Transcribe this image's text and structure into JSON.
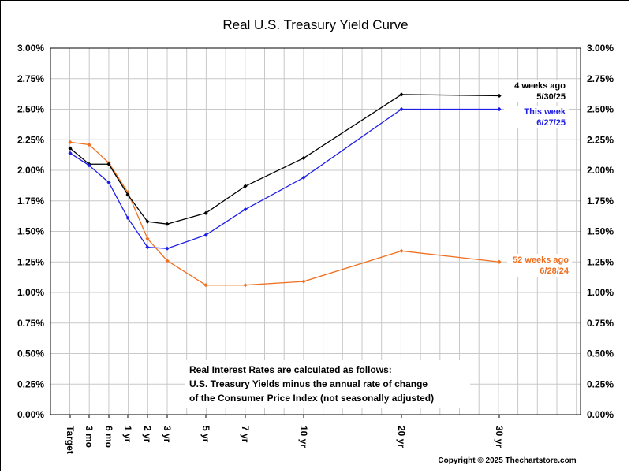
{
  "chart_data": {
    "type": "line",
    "title": "Real U.S. Treasury Yield Curve",
    "categories": [
      "Target",
      "3 mo",
      "6 mo",
      "1 yr",
      "2 yr",
      "3 yr",
      "5 yr",
      "7 yr",
      "10 yr",
      "20 yr",
      "30 yr"
    ],
    "x_years": [
      0,
      0.25,
      0.5,
      1,
      2,
      3,
      5,
      7,
      10,
      20,
      30
    ],
    "ylim": [
      0,
      3
    ],
    "yticks": [
      "0.00%",
      "0.25%",
      "0.50%",
      "0.75%",
      "1.00%",
      "1.25%",
      "1.50%",
      "1.75%",
      "2.00%",
      "2.25%",
      "2.50%",
      "2.75%",
      "3.00%"
    ],
    "grid": true,
    "series": [
      {
        "key": "week52",
        "label_line1": "52 weeks ago",
        "label_line2": "6/28/24",
        "color": "#F07021",
        "values": [
          2.23,
          2.21,
          2.06,
          1.82,
          1.44,
          1.26,
          1.06,
          1.06,
          1.09,
          1.34,
          1.25
        ]
      },
      {
        "key": "week4",
        "label_line1": "4 weeks ago",
        "label_line2": "5/30/25",
        "color": "#000000",
        "values": [
          2.18,
          2.05,
          2.05,
          1.8,
          1.58,
          1.56,
          1.65,
          1.87,
          2.1,
          2.62,
          2.61
        ]
      },
      {
        "key": "thisweek",
        "label_line1": "This week",
        "label_line2": "6/27/25",
        "color": "#1E1EE6",
        "values": [
          2.14,
          2.04,
          1.9,
          1.61,
          1.37,
          1.36,
          1.47,
          1.68,
          1.94,
          2.5,
          2.5
        ]
      }
    ],
    "note": [
      "Real Interest Rates are calculated as follows:",
      "U.S. Treasury Yields minus the annual rate of change",
      "of the Consumer Price Index (not seasonally adjusted)"
    ],
    "copyright": "Copyright © 2025 Thechartstore.com"
  }
}
